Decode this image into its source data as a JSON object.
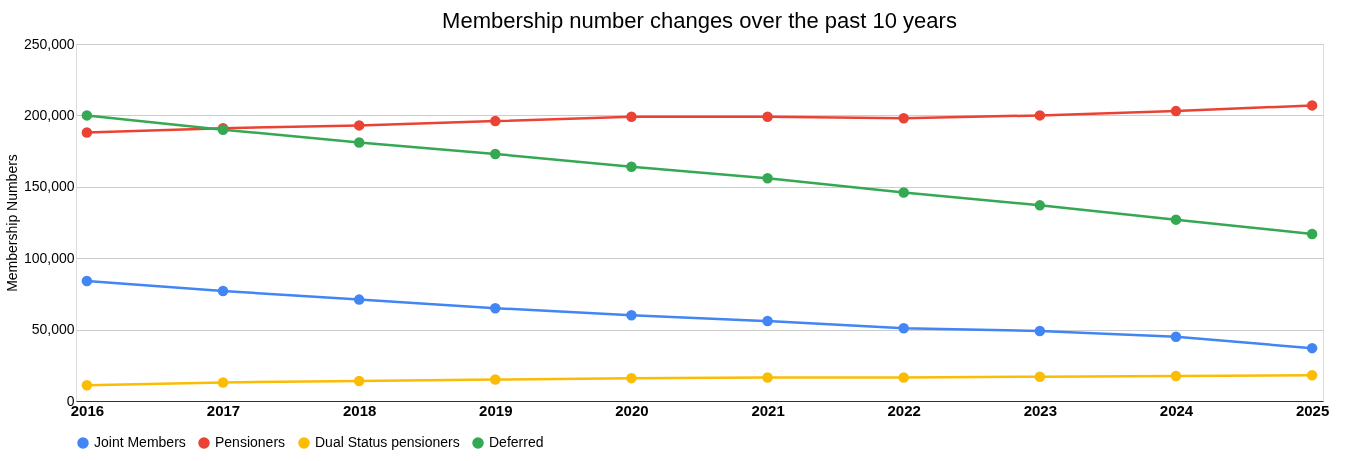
{
  "chart_data": {
    "type": "line",
    "title": "Membership number changes over the past 10 years",
    "ylabel": "Membership Numbers",
    "categories": [
      "2016",
      "2017",
      "2018",
      "2019",
      "2020",
      "2021",
      "2022",
      "2023",
      "2024",
      "2025"
    ],
    "series": [
      {
        "name": "Joint Members",
        "color": "#4285f4",
        "values": [
          84000,
          77000,
          71000,
          65000,
          60000,
          56000,
          51000,
          49000,
          45000,
          37000
        ]
      },
      {
        "name": "Pensioners",
        "color": "#ea4335",
        "values": [
          188000,
          191000,
          193000,
          196000,
          199000,
          199000,
          198000,
          200000,
          203000,
          207000
        ]
      },
      {
        "name": "Dual Status pensioners",
        "color": "#fbbc04",
        "values": [
          11000,
          13000,
          14000,
          15000,
          16000,
          16500,
          16500,
          17000,
          17500,
          18000
        ]
      },
      {
        "name": "Deferred",
        "color": "#34a853",
        "values": [
          200000,
          190000,
          181000,
          173000,
          164000,
          156000,
          146000,
          137000,
          127000,
          117000
        ]
      }
    ],
    "ylim": [
      0,
      250000
    ],
    "yticks": [
      0,
      {
        "value": 50000,
        "label": "50,000"
      },
      {
        "value": 100000,
        "label": "100,000"
      },
      {
        "value": 150000,
        "label": "150,000"
      },
      {
        "value": 200000,
        "label": "200,000"
      },
      {
        "value": 250000,
        "label": "250,000"
      }
    ],
    "grid": "y",
    "legend": "bottom",
    "marker": "circle",
    "line_style": "solid"
  }
}
